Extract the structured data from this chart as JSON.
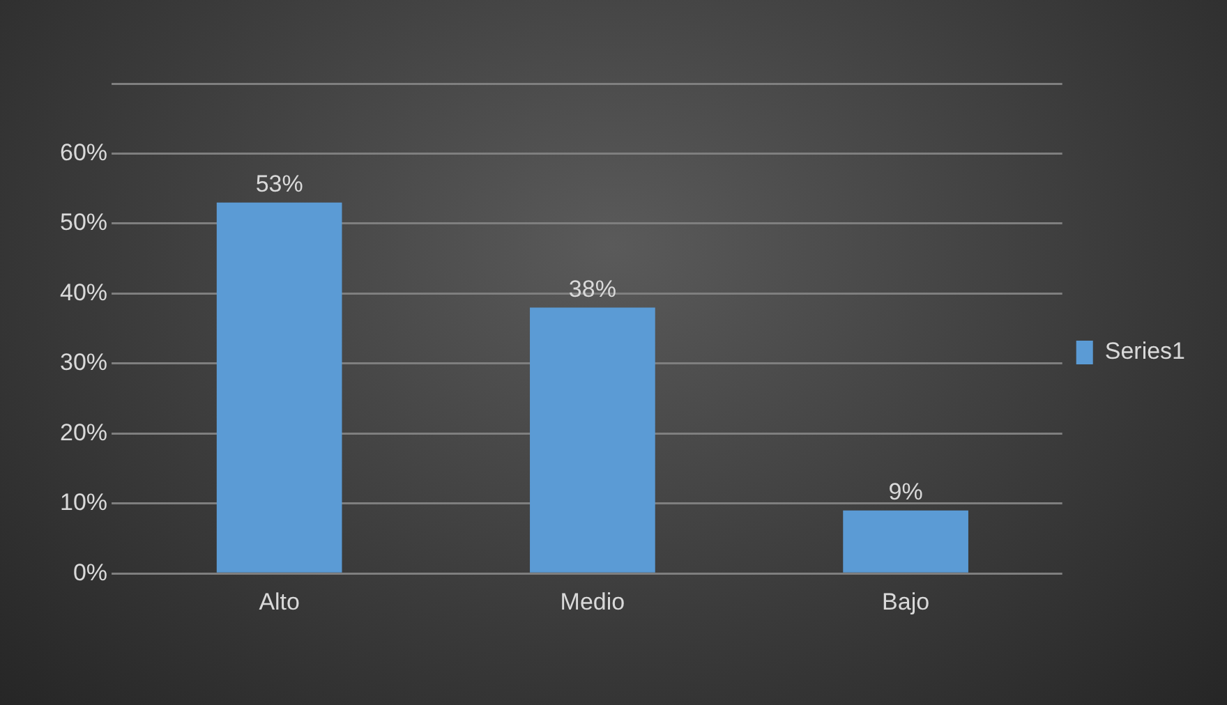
{
  "chart_data": {
    "type": "bar",
    "categories": [
      "Alto",
      "Medio",
      "Bajo"
    ],
    "series": [
      {
        "name": "Series1",
        "color": "#5b9bd5",
        "values": [
          53,
          38,
          9
        ],
        "value_labels": [
          "53%",
          "38%",
          "9%"
        ]
      }
    ],
    "ylim": [
      0,
      70
    ],
    "yticks": [
      {
        "value": 0,
        "label": "0%"
      },
      {
        "value": 10,
        "label": "10%"
      },
      {
        "value": 20,
        "label": "20%"
      },
      {
        "value": 30,
        "label": "30%"
      },
      {
        "value": 40,
        "label": "40%"
      },
      {
        "value": 50,
        "label": "50%"
      },
      {
        "value": 60,
        "label": "60%"
      },
      {
        "value": 70,
        "label": null
      }
    ],
    "grid": "y",
    "legend": "right"
  }
}
